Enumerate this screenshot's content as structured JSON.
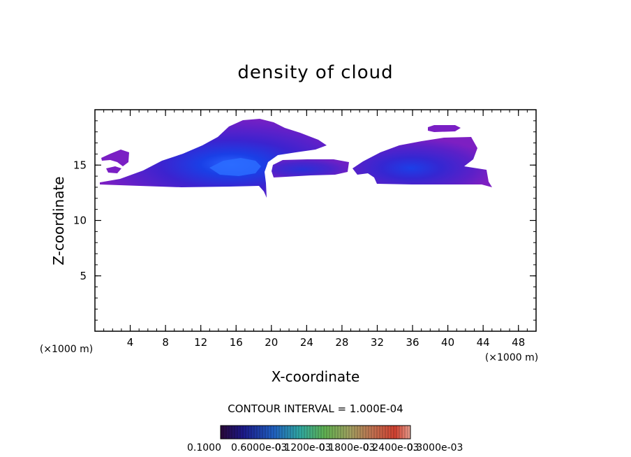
{
  "chart_data": {
    "type": "heatmap",
    "title": "density of cloud",
    "xlabel": "X-coordinate",
    "ylabel": "Z-coordinate",
    "x_unit": "(×1000 m)",
    "xlim": [
      0,
      50
    ],
    "ylim": [
      0,
      20
    ],
    "x_ticks": [
      "4",
      "8",
      "12",
      "16",
      "20",
      "24",
      "28",
      "32",
      "36",
      "40",
      "44",
      "48"
    ],
    "y_ticks": [
      "5",
      "10",
      "15"
    ],
    "contour_interval_text": "CONTOUR INTERVAL = 1.000E-04",
    "colorbar_labels": [
      "0.1000",
      "0.6000e-03",
      "0.1200e-03",
      "0.1800e-03",
      "0.2400e-03",
      "0.3000e-03"
    ],
    "regions": [
      {
        "x": [
          0.5,
          19.5
        ],
        "z": [
          12.0,
          18.8
        ],
        "peak_x": 16,
        "peak_z": 14.8,
        "level": "high"
      },
      {
        "x": [
          1.0,
          4.0
        ],
        "z": [
          14.5,
          16.2
        ],
        "level": "low"
      },
      {
        "x": [
          20.0,
          29.0
        ],
        "z": [
          13.8,
          15.4
        ],
        "level": "medium"
      },
      {
        "x": [
          29.5,
          45.0
        ],
        "z": [
          13.0,
          17.3
        ],
        "peak_x": 36,
        "peak_z": 14.4,
        "level": "high"
      },
      {
        "x": [
          38.0,
          41.0
        ],
        "z": [
          17.8,
          18.3
        ],
        "level": "low"
      }
    ],
    "colors": {
      "low": "#7a1fc4",
      "medium": "#4d2ad0",
      "high": "#1438e6",
      "core": "#2a6cff"
    }
  }
}
